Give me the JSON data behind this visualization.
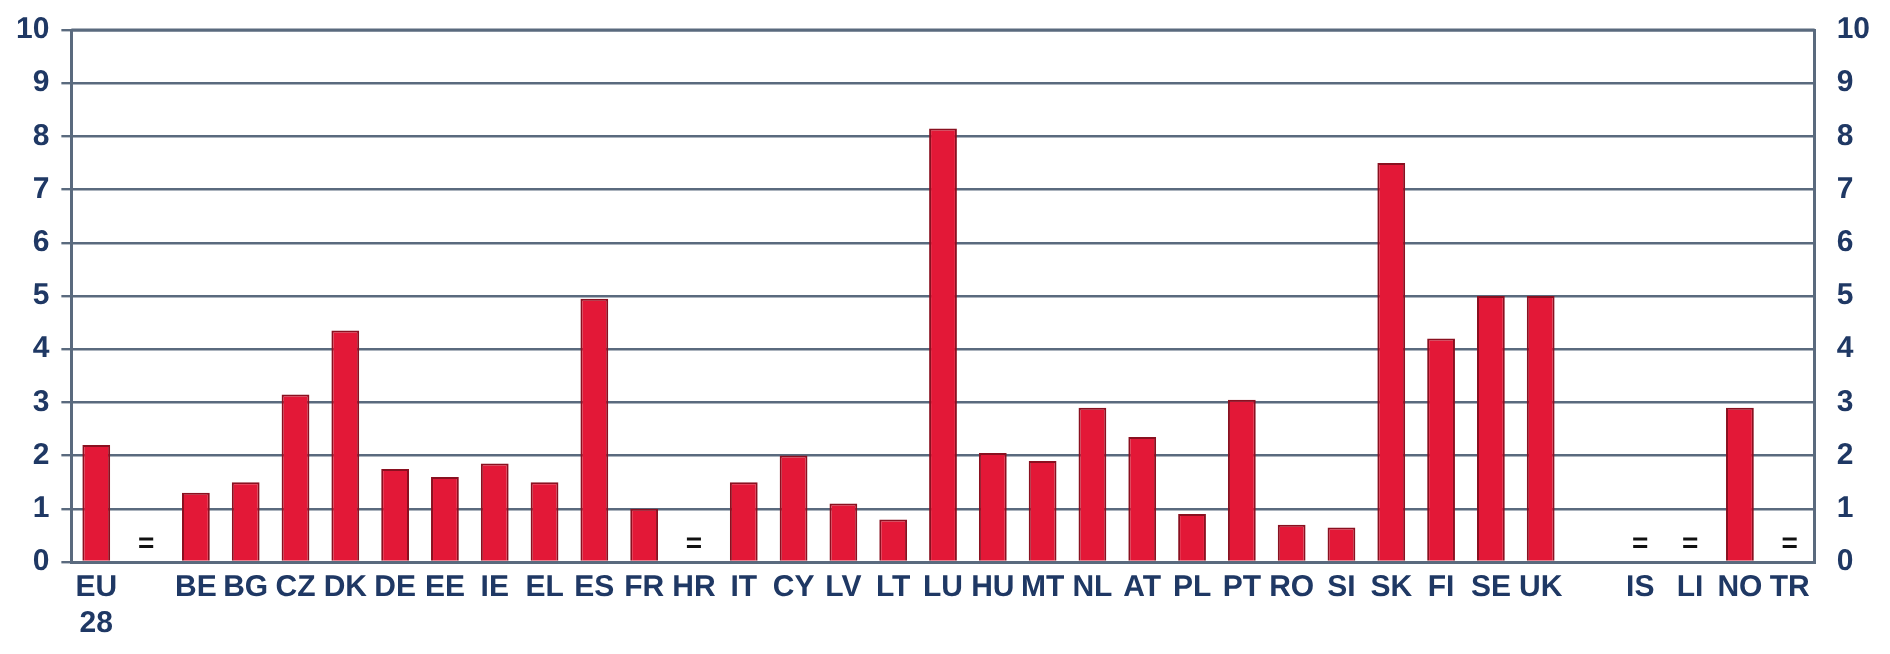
{
  "chart_data": {
    "type": "bar",
    "categories": [
      "EU 28",
      null,
      "BE",
      "BG",
      "CZ",
      "DK",
      "DE",
      "EE",
      "IE",
      "EL",
      "ES",
      "FR",
      "HR",
      "IT",
      "CY",
      "LV",
      "LT",
      "LU",
      "HU",
      "MT",
      "NL",
      "AT",
      "PL",
      "PT",
      "RO",
      "SI",
      "SK",
      "FI",
      "SE",
      "UK",
      null,
      "IS",
      "LI",
      "NO",
      "TR"
    ],
    "values": [
      2.2,
      null,
      1.3,
      1.5,
      3.15,
      4.35,
      1.75,
      1.6,
      1.85,
      1.5,
      4.95,
      1.0,
      null,
      1.5,
      2.0,
      1.1,
      0.8,
      8.15,
      2.05,
      1.9,
      2.9,
      2.35,
      0.9,
      3.05,
      0.7,
      0.65,
      7.5,
      4.2,
      5.0,
      5.0,
      null,
      null,
      null,
      2.9,
      null
    ],
    "value_labels": [
      null,
      "=",
      null,
      null,
      null,
      null,
      null,
      null,
      null,
      null,
      null,
      null,
      "=",
      null,
      null,
      null,
      null,
      null,
      null,
      null,
      null,
      null,
      null,
      null,
      null,
      null,
      null,
      null,
      null,
      null,
      null,
      "=",
      "=",
      null,
      "="
    ],
    "color": "#e31837",
    "ylim": [
      0,
      10
    ],
    "yticks": [
      0,
      1,
      2,
      3,
      4,
      5,
      6,
      7,
      8,
      9,
      10
    ],
    "y2lim": [
      0,
      10
    ],
    "y2ticks": [
      0,
      1,
      2,
      3,
      4,
      5,
      6,
      7,
      8,
      9,
      10
    ],
    "grid": "y",
    "legend": false
  }
}
